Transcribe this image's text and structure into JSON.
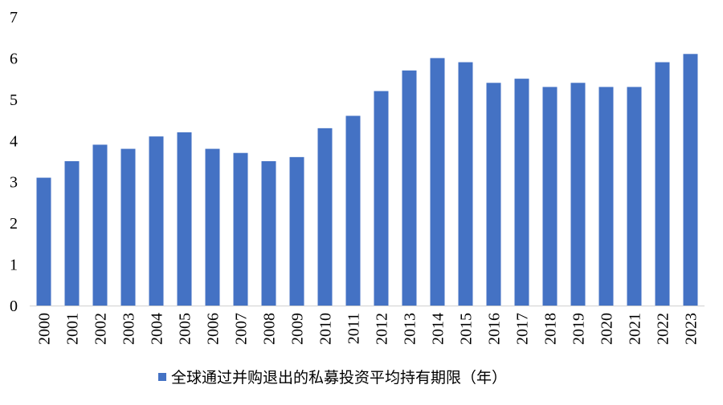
{
  "chart_data": {
    "type": "bar",
    "title": "",
    "xlabel": "",
    "ylabel": "",
    "categories": [
      "2000",
      "2001",
      "2002",
      "2003",
      "2004",
      "2005",
      "2006",
      "2007",
      "2008",
      "2009",
      "2010",
      "2011",
      "2012",
      "2013",
      "2014",
      "2015",
      "2016",
      "2017",
      "2018",
      "2019",
      "2020",
      "2021",
      "2022",
      "2023"
    ],
    "series": [
      {
        "name": "全球通过并购退出的私募投资平均持有期限（年）",
        "color": "#4472C4",
        "values": [
          3.1,
          3.5,
          3.9,
          3.8,
          4.1,
          4.2,
          3.8,
          3.7,
          3.5,
          3.6,
          4.3,
          4.6,
          5.2,
          5.7,
          6.0,
          5.9,
          5.4,
          5.5,
          5.3,
          5.4,
          5.3,
          5.3,
          5.9,
          6.1
        ]
      }
    ],
    "ylim": [
      0,
      7
    ],
    "yticks": [
      0,
      1,
      2,
      3,
      4,
      5,
      6,
      7
    ],
    "grid": false,
    "legend": "bottom-center"
  }
}
